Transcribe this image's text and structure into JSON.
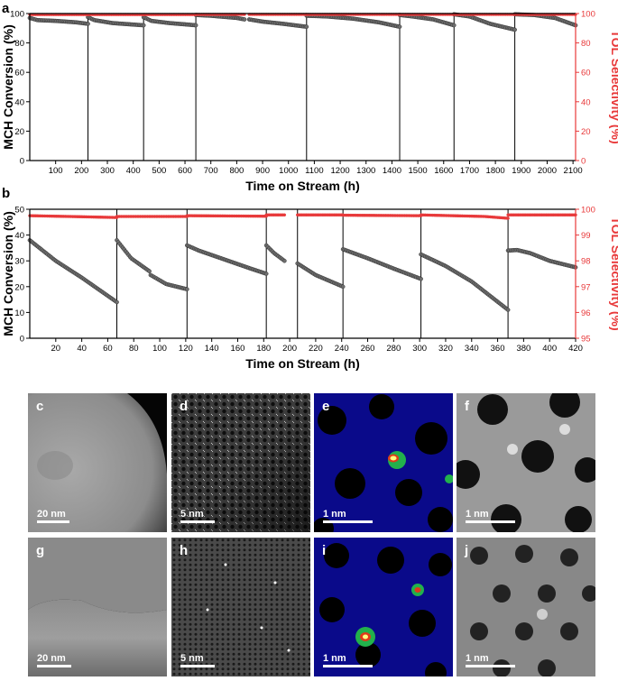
{
  "panels": {
    "a": "a",
    "b": "b",
    "c": "c",
    "d": "d",
    "e": "e",
    "f": "f",
    "g": "g",
    "h": "h",
    "i": "i",
    "j": "j"
  },
  "scalebars": {
    "c": "20 nm",
    "d": "5 nm",
    "e": "1 nm",
    "f": "1 nm",
    "g": "20 nm",
    "h": "5 nm",
    "i": "1 nm",
    "j": "1 nm"
  },
  "colors": {
    "conversion": "#555555",
    "selectivity": "#e8393a",
    "axis": "#000000"
  },
  "chart_data": [
    {
      "type": "scatter",
      "panel": "a",
      "xlabel": "Time on Stream (h)",
      "ylabel": "MCH Conversion (%)",
      "y2label": "TOL Selectivity (%)",
      "xlim": [
        0,
        2110
      ],
      "ylim": [
        0,
        100
      ],
      "y2lim": [
        0,
        100
      ],
      "xticks": [
        100,
        200,
        300,
        400,
        500,
        600,
        700,
        800,
        900,
        1000,
        1100,
        1200,
        1300,
        1400,
        1500,
        1600,
        1700,
        1800,
        1900,
        2000,
        2100
      ],
      "yticks": [
        0,
        20,
        40,
        60,
        80,
        100
      ],
      "y2ticks": [
        0,
        20,
        40,
        60,
        80,
        100
      ],
      "cycle_boundaries": [
        225,
        440,
        642,
        1070,
        1430,
        1640,
        1875
      ],
      "series": [
        {
          "name": "",
          "role": "conversion",
          "segments": [
            {
              "x": [
                0,
                30,
                100,
                180,
                225
              ],
              "y": [
                97,
                95.5,
                95,
                94,
                93
              ]
            },
            {
              "x": [
                225,
                250,
                320,
                400,
                440
              ],
              "y": [
                97.5,
                95.5,
                93.5,
                92.5,
                92
              ]
            },
            {
              "x": [
                440,
                470,
                540,
                610,
                642
              ],
              "y": [
                97.5,
                95,
                93.5,
                92.5,
                92
              ]
            },
            {
              "x": [
                642,
                700,
                800,
                830
              ],
              "y": [
                99,
                98.5,
                97,
                96
              ]
            },
            {
              "x": [
                848,
                900,
                980,
                1070
              ],
              "y": [
                96,
                94.5,
                93,
                91
              ]
            },
            {
              "x": [
                1070,
                1150,
                1250,
                1350,
                1430
              ],
              "y": [
                98.5,
                98,
                96.5,
                94,
                91
              ]
            },
            {
              "x": [
                1430,
                1480,
                1560,
                1640
              ],
              "y": [
                99,
                98,
                96,
                92
              ]
            },
            {
              "x": [
                1640,
                1700,
                1780,
                1875
              ],
              "y": [
                99.5,
                98,
                93,
                89
              ]
            },
            {
              "x": [
                1875,
                1950,
                2030,
                2110
              ],
              "y": [
                99.5,
                99,
                97,
                92
              ]
            }
          ]
        },
        {
          "name": "",
          "role": "selectivity",
          "segments": [
            {
              "x": [
                0,
                225
              ],
              "y": [
                99.3,
                99.3
              ]
            },
            {
              "x": [
                225,
                440
              ],
              "y": [
                99.3,
                99.3
              ]
            },
            {
              "x": [
                440,
                642
              ],
              "y": [
                99.3,
                99.3
              ]
            },
            {
              "x": [
                642,
                830
              ],
              "y": [
                99.4,
                99.4
              ]
            },
            {
              "x": [
                848,
                1070
              ],
              "y": [
                99.4,
                99.4
              ]
            },
            {
              "x": [
                1070,
                1430
              ],
              "y": [
                99.4,
                99.4
              ]
            },
            {
              "x": [
                1430,
                1640
              ],
              "y": [
                99.4,
                99.4
              ]
            },
            {
              "x": [
                1640,
                1875
              ],
              "y": [
                99.4,
                99.4
              ]
            },
            {
              "x": [
                1875,
                2110
              ],
              "y": [
                99.4,
                99.4
              ]
            }
          ]
        }
      ]
    },
    {
      "type": "scatter",
      "panel": "b",
      "xlabel": "Time on Stream (h)",
      "ylabel": "MCH Conversion (%)",
      "y2label": "TOL Selectivity (%)",
      "xlim": [
        0,
        420
      ],
      "ylim": [
        0,
        50
      ],
      "y2lim": [
        95,
        100
      ],
      "xticks": [
        20,
        40,
        60,
        80,
        100,
        120,
        140,
        160,
        180,
        200,
        220,
        240,
        260,
        280,
        300,
        320,
        340,
        360,
        380,
        400,
        420
      ],
      "yticks": [
        0,
        10,
        20,
        30,
        40,
        50
      ],
      "y2ticks": [
        95,
        96,
        97,
        98,
        99,
        100
      ],
      "cycle_boundaries": [
        67,
        121,
        182,
        206,
        241,
        301,
        368
      ],
      "series": [
        {
          "name": "",
          "role": "conversion",
          "segments": [
            {
              "x": [
                0,
                10,
                20,
                40,
                67
              ],
              "y": [
                38,
                34,
                30,
                23.5,
                14
              ]
            },
            {
              "x": [
                67,
                78,
                92
              ],
              "y": [
                38,
                31,
                26
              ]
            },
            {
              "x": [
                93,
                105,
                121
              ],
              "y": [
                24.5,
                21,
                19
              ]
            },
            {
              "x": [
                121,
                130,
                150,
                170,
                182
              ],
              "y": [
                36,
                34,
                30.5,
                27,
                25
              ]
            },
            {
              "x": [
                182,
                188,
                196
              ],
              "y": [
                36,
                33,
                30
              ]
            },
            {
              "x": [
                206,
                220,
                241
              ],
              "y": [
                29,
                24.5,
                20
              ]
            },
            {
              "x": [
                241,
                260,
                280,
                301
              ],
              "y": [
                34.5,
                31,
                27,
                23
              ]
            },
            {
              "x": [
                301,
                320,
                340,
                368
              ],
              "y": [
                32.5,
                28,
                22,
                11
              ]
            },
            {
              "x": [
                368,
                375,
                385,
                400,
                420
              ],
              "y": [
                34,
                34.2,
                33,
                30,
                27.5
              ]
            }
          ]
        },
        {
          "name": "",
          "role": "selectivity",
          "segments": [
            {
              "x": [
                0,
                30,
                67
              ],
              "y": [
                99.75,
                99.72,
                99.68
              ]
            },
            {
              "x": [
                67,
                121
              ],
              "y": [
                99.72,
                99.72
              ]
            },
            {
              "x": [
                121,
                182
              ],
              "y": [
                99.75,
                99.73
              ]
            },
            {
              "x": [
                182,
                196
              ],
              "y": [
                99.78,
                99.78
              ]
            },
            {
              "x": [
                206,
                241
              ],
              "y": [
                99.78,
                99.78
              ]
            },
            {
              "x": [
                241,
                301
              ],
              "y": [
                99.77,
                99.75
              ]
            },
            {
              "x": [
                301,
                350,
                368
              ],
              "y": [
                99.78,
                99.72,
                99.65
              ]
            },
            {
              "x": [
                368,
                420
              ],
              "y": [
                99.78,
                99.78
              ]
            }
          ]
        }
      ]
    }
  ]
}
